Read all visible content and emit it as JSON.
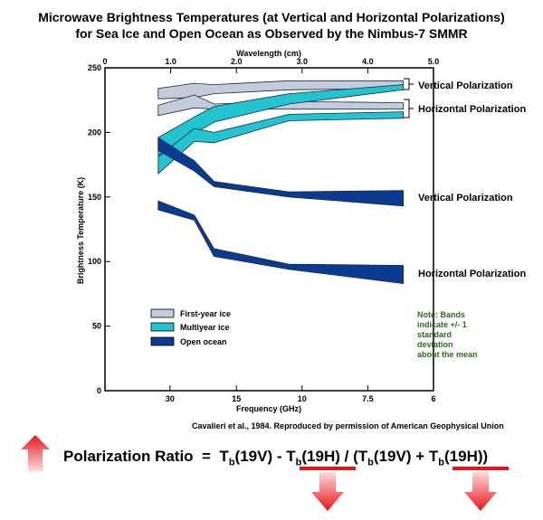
{
  "title_line1": "Microwave Brightness Temperatures (at Vertical and Horizontal Polarizations)",
  "title_line2": "for Sea Ice and Open Ocean as Observed by the Nimbus-7 SMMR",
  "chart_data": {
    "type": "area",
    "xlabel": "Frequency (GHz)",
    "x2label": "Wavelength (cm)",
    "ylabel": "Brightness Temperature (K)",
    "ylim": [
      0,
      250
    ],
    "xlim_wavelength_cm": [
      0,
      5.0
    ],
    "yticks": [
      "0",
      "50",
      "100",
      "150",
      "200",
      "250"
    ],
    "x_top_ticks": [
      {
        "wl": 0,
        "label": "0"
      },
      {
        "wl": 1.0,
        "label": "1.0"
      },
      {
        "wl": 2.0,
        "label": "2.0"
      },
      {
        "wl": 3.0,
        "label": "3.0"
      },
      {
        "wl": 4.0,
        "label": "4.0"
      },
      {
        "wl": 5.0,
        "label": "5.0"
      }
    ],
    "x_bottom_ticks": [
      {
        "wl": 0.99,
        "label": "30"
      },
      {
        "wl": 2.0,
        "label": "15"
      },
      {
        "wl": 3.0,
        "label": "10"
      },
      {
        "wl": 4.0,
        "label": "7.5"
      },
      {
        "wl": 5.0,
        "label": "6"
      }
    ],
    "series": [
      {
        "name": "First-year ice",
        "color": "#c3ccd8",
        "pol": "V",
        "wl": [
          0.81,
          1.36,
          1.66,
          2.8,
          4.54
        ],
        "low": [
          226,
          227,
          230,
          233,
          234
        ],
        "high": [
          234,
          238,
          237,
          240,
          240
        ]
      },
      {
        "name": "First-year ice",
        "color": "#c3ccd8",
        "pol": "H",
        "wl": [
          0.81,
          1.36,
          1.66,
          2.8,
          4.54
        ],
        "low": [
          213,
          219,
          218,
          218,
          218
        ],
        "high": [
          221,
          229,
          222,
          224,
          223
        ]
      },
      {
        "name": "Multiyear ice",
        "color": "#22c4cf",
        "pol": "V",
        "wl": [
          0.81,
          1.36,
          1.66,
          2.8,
          4.54
        ],
        "low": [
          182,
          199,
          208,
          222,
          233
        ],
        "high": [
          196,
          212,
          220,
          230,
          237
        ]
      },
      {
        "name": "Multiyear ice",
        "color": "#22c4cf",
        "pol": "H",
        "wl": [
          0.81,
          1.36,
          1.66,
          2.8,
          4.54
        ],
        "low": [
          168,
          193,
          192,
          209,
          211
        ],
        "high": [
          181,
          203,
          200,
          214,
          216
        ]
      },
      {
        "name": "Open ocean",
        "color": "#0b3b91",
        "pol": "V",
        "wl": [
          0.81,
          1.36,
          1.66,
          2.8,
          4.54
        ],
        "low": [
          186,
          170,
          158,
          150,
          143
        ],
        "high": [
          196,
          178,
          162,
          154,
          155
        ]
      },
      {
        "name": "Open ocean",
        "color": "#0b3b91",
        "pol": "H",
        "wl": [
          0.81,
          1.36,
          1.66,
          2.8,
          4.54
        ],
        "low": [
          140,
          132,
          104,
          94,
          83
        ],
        "high": [
          147,
          136,
          110,
          98,
          97
        ]
      }
    ],
    "legend": [
      {
        "name": "First-year ice",
        "color": "#c3ccd8"
      },
      {
        "name": "Multiyear ice",
        "color": "#22c4cf"
      },
      {
        "name": "Open ocean",
        "color": "#0b3b91"
      }
    ],
    "annotations": {
      "ice_vertical": "Vertical Polarization",
      "ice_horizontal": "Horizontal Polarization",
      "ocean_vertical": "Vertical Polarization",
      "ocean_horizontal": "Horizontal Polarization",
      "note": [
        "Note: Bands",
        "indicate +/- 1",
        "standard",
        "deviation",
        "about the mean"
      ]
    }
  },
  "credit": "Cavalieri et al., 1984. Reproduced by permission of American Geophysical Union",
  "formula": {
    "label": "Polarization Ratio",
    "eq": "=",
    "t": "T",
    "b": "b",
    "v19": "(19V)",
    "h19": "(19H)",
    "minus": "-",
    "div": "/",
    "plus": "+",
    "open": "(",
    "close": ")",
    "arrow_up_color": "#e8141c",
    "arrow_down_color": "#e8141c"
  }
}
